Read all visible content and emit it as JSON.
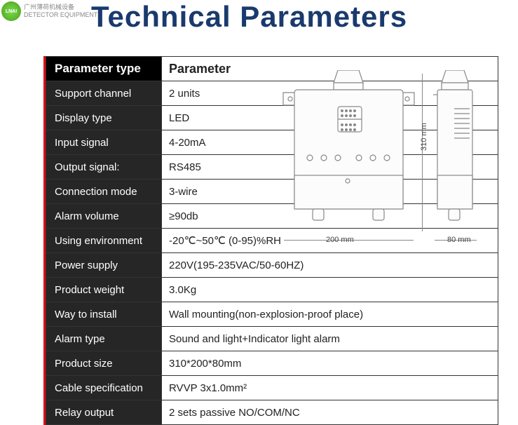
{
  "logo": {
    "badge": "LNAI",
    "ch": "广州薄荷机械设备",
    "en": "DETECTOR EQUIPMENT"
  },
  "title": "Technical Parameters",
  "table": {
    "header": {
      "label": "Parameter type",
      "value": "Parameter"
    },
    "rows": [
      {
        "label": "Support channel",
        "value": "2 units"
      },
      {
        "label": "Display type",
        "value": "LED"
      },
      {
        "label": "Input signal",
        "value": "4-20mA"
      },
      {
        "label": "Output signal:",
        "value": "RS485"
      },
      {
        "label": "Connection mode",
        "value": "3-wire"
      },
      {
        "label": "Alarm volume",
        "value": "≥90db"
      },
      {
        "label": "Using environment",
        "value": "-20℃~50℃ (0-95)%RH"
      },
      {
        "label": "Power supply",
        "value": "220V(195-235VAC/50-60HZ)"
      },
      {
        "label": "Product weight",
        "value": "3.0Kg"
      },
      {
        "label": "Way to install",
        "value": "Wall mounting(non-explosion-proof place)"
      },
      {
        "label": "Alarm type",
        "value": "Sound and light+Indicator light alarm"
      },
      {
        "label": "Product size",
        "value": "310*200*80mm"
      },
      {
        "label": "Cable specification",
        "value": "RVVP 3x1.0mm²"
      },
      {
        "label": "Relay output",
        "value": "2 sets passive NO/COM/NC"
      }
    ]
  },
  "dimensions": {
    "width_mm": "200 mm",
    "height_mm": "310 mm",
    "depth_mm": "80 mm"
  },
  "drawing": {
    "stroke": "#777",
    "fill": "#f7f7f7",
    "grill": "#888"
  }
}
